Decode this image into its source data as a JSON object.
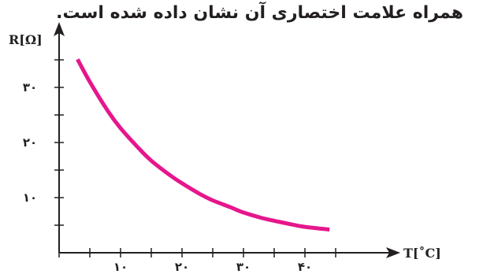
{
  "caption": "همراه علامت اختصاری آن نشان داده شده است.",
  "colors": {
    "curve": "#e6168c",
    "axis": "#231f20"
  },
  "chart_data": {
    "type": "line",
    "title": "",
    "ylabel": "R[Ω]",
    "xlabel": "T[˚C]",
    "xlim": [
      0,
      48
    ],
    "ylim": [
      0,
      40
    ],
    "x_ticks": [
      0,
      5,
      10,
      15,
      20,
      25,
      30,
      35,
      40,
      45
    ],
    "y_ticks": [
      5,
      10,
      15,
      20,
      25,
      30,
      35
    ],
    "x_tick_labels": [
      {
        "value": 10,
        "label": "۱۰"
      },
      {
        "value": 20,
        "label": "۲۰"
      },
      {
        "value": 30,
        "label": "۳۰"
      },
      {
        "value": 40,
        "label": "۴۰"
      }
    ],
    "y_tick_labels": [
      {
        "value": 10,
        "label": "۱۰"
      },
      {
        "value": 20,
        "label": "۲۰"
      },
      {
        "value": 30,
        "label": "۳۰"
      }
    ],
    "series": [
      {
        "x": [
          3,
          5,
          8,
          10,
          13,
          15,
          18,
          20,
          23,
          25,
          28,
          30,
          33,
          35,
          38,
          40,
          44
        ],
        "y": [
          35.1,
          31.0,
          25.6,
          22.6,
          18.9,
          16.7,
          14.1,
          12.6,
          10.6,
          9.5,
          8.2,
          7.3,
          6.3,
          5.8,
          5.1,
          4.7,
          4.2
        ]
      }
    ]
  }
}
